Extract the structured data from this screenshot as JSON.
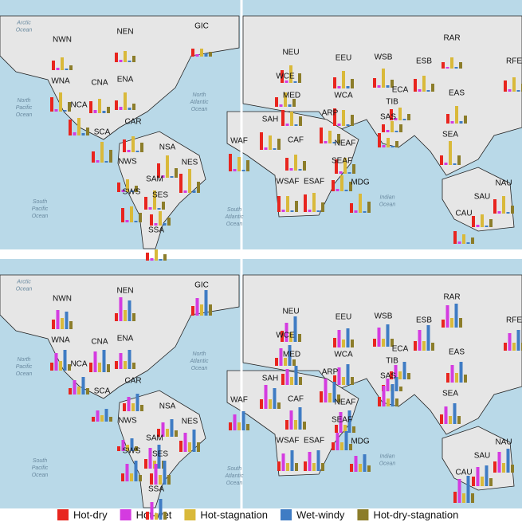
{
  "legend": {
    "items": [
      {
        "name": "Hot-dry",
        "color": "#e8251e"
      },
      {
        "name": "Hot-wet",
        "color": "#d43be0"
      },
      {
        "name": "Hot-stagnation",
        "color": "#d9b93a"
      },
      {
        "name": "Wet-windy",
        "color": "#3f7cc4"
      },
      {
        "name": "Hot-dry-stagnation",
        "color": "#8c7d2a"
      }
    ]
  },
  "oceans": [
    [
      "Arctic",
      "Ocean"
    ],
    [
      "North",
      "Pacific",
      "Ocean"
    ],
    [
      "North",
      "Atlantic",
      "Ocean"
    ],
    [
      "South",
      "Pacific",
      "Ocean"
    ],
    [
      "South",
      "Atlantic",
      "Ocean"
    ],
    [
      "Indian",
      "Ocean"
    ]
  ],
  "regions": [
    "NWN",
    "NEN",
    "GIC",
    "WNA",
    "CNA",
    "ENA",
    "NCA",
    "SCA",
    "CAR",
    "NWS",
    "NSA",
    "SAM",
    "NES",
    "SWS",
    "SES",
    "SSA",
    "NEU",
    "WCE",
    "MED",
    "WCA",
    "EEU",
    "WSB",
    "ESB",
    "RAR",
    "RFE",
    "ECA",
    "TIB",
    "EAS",
    "SAS",
    "ARP",
    "SAH",
    "WAF",
    "CAF",
    "NEAF",
    "SEAF",
    "WSAF",
    "ESAF",
    "MDG",
    "SEA",
    "NAU",
    "SAU",
    "CAU"
  ],
  "panels": [
    {
      "values": [
        [
          12,
          3,
          16,
          2,
          6
        ],
        [
          12,
          3,
          14,
          2,
          8
        ],
        [
          10,
          3,
          10,
          4,
          6
        ],
        [
          18,
          3,
          24,
          2,
          12
        ],
        [
          15,
          4,
          18,
          3,
          8
        ],
        [
          12,
          4,
          22,
          3,
          8
        ],
        [
          20,
          4,
          22,
          3,
          10
        ],
        [
          14,
          3,
          26,
          2,
          16
        ],
        [
          16,
          3,
          20,
          2,
          12
        ],
        [
          12,
          3,
          16,
          2,
          8
        ],
        [
          18,
          3,
          28,
          2,
          12
        ],
        [
          16,
          3,
          24,
          2,
          10
        ],
        [
          24,
          3,
          30,
          3,
          14
        ],
        [
          18,
          3,
          20,
          2,
          12
        ],
        [
          14,
          3,
          18,
          3,
          10
        ],
        [
          10,
          3,
          14,
          2,
          8
        ],
        [
          16,
          3,
          22,
          2,
          12
        ],
        [
          12,
          3,
          18,
          3,
          10
        ],
        [
          20,
          3,
          18,
          2,
          12
        ],
        [
          22,
          3,
          20,
          2,
          14
        ],
        [
          14,
          3,
          22,
          3,
          12
        ],
        [
          12,
          3,
          24,
          3,
          10
        ],
        [
          16,
          3,
          20,
          2,
          10
        ],
        [
          8,
          2,
          14,
          2,
          8
        ],
        [
          14,
          3,
          18,
          2,
          10
        ],
        [
          14,
          3,
          16,
          2,
          8
        ],
        [
          10,
          3,
          14,
          2,
          10
        ],
        [
          12,
          3,
          22,
          3,
          10
        ],
        [
          18,
          3,
          12,
          2,
          8
        ],
        [
          20,
          3,
          16,
          2,
          12
        ],
        [
          22,
          3,
          18,
          2,
          14
        ],
        [
          22,
          3,
          18,
          2,
          14
        ],
        [
          16,
          3,
          20,
          2,
          12
        ],
        [
          18,
          3,
          20,
          2,
          12
        ],
        [
          14,
          3,
          20,
          2,
          12
        ],
        [
          20,
          3,
          20,
          2,
          14
        ],
        [
          22,
          3,
          24,
          2,
          12
        ],
        [
          12,
          3,
          24,
          2,
          14
        ],
        [
          12,
          3,
          30,
          2,
          12
        ],
        [
          18,
          3,
          22,
          2,
          10
        ],
        [
          14,
          3,
          16,
          2,
          10
        ],
        [
          16,
          3,
          12,
          2,
          8
        ]
      ]
    },
    {
      "values": [
        [
          12,
          24,
          14,
          22,
          10
        ],
        [
          10,
          30,
          14,
          26,
          10
        ],
        [
          12,
          22,
          14,
          32,
          14
        ],
        [
          10,
          22,
          12,
          26,
          8
        ],
        [
          12,
          26,
          12,
          28,
          10
        ],
        [
          10,
          20,
          10,
          24,
          8
        ],
        [
          8,
          18,
          10,
          22,
          8
        ],
        [
          6,
          14,
          8,
          16,
          6
        ],
        [
          10,
          18,
          10,
          22,
          8
        ],
        [
          6,
          14,
          8,
          16,
          6
        ],
        [
          10,
          18,
          10,
          22,
          8
        ],
        [
          12,
          26,
          10,
          30,
          10
        ],
        [
          14,
          24,
          12,
          28,
          12
        ],
        [
          10,
          22,
          10,
          26,
          8
        ],
        [
          14,
          26,
          12,
          30,
          12
        ],
        [
          10,
          22,
          8,
          26,
          10
        ],
        [
          14,
          24,
          12,
          32,
          10
        ],
        [
          10,
          22,
          10,
          26,
          8
        ],
        [
          14,
          20,
          10,
          24,
          10
        ],
        [
          12,
          22,
          10,
          26,
          10
        ],
        [
          12,
          22,
          10,
          24,
          10
        ],
        [
          10,
          24,
          10,
          28,
          10
        ],
        [
          12,
          26,
          12,
          32,
          10
        ],
        [
          10,
          28,
          12,
          30,
          12
        ],
        [
          10,
          22,
          10,
          26,
          10
        ],
        [
          10,
          18,
          10,
          22,
          8
        ],
        [
          8,
          16,
          8,
          18,
          6
        ],
        [
          12,
          22,
          12,
          26,
          10
        ],
        [
          12,
          26,
          10,
          28,
          10
        ],
        [
          14,
          30,
          12,
          26,
          10
        ],
        [
          12,
          30,
          12,
          26,
          8
        ],
        [
          10,
          20,
          10,
          24,
          8
        ],
        [
          12,
          24,
          12,
          28,
          10
        ],
        [
          10,
          26,
          10,
          28,
          8
        ],
        [
          10,
          22,
          10,
          24,
          8
        ],
        [
          12,
          22,
          10,
          26,
          10
        ],
        [
          12,
          24,
          10,
          26,
          10
        ],
        [
          10,
          20,
          10,
          22,
          8
        ],
        [
          12,
          22,
          10,
          26,
          10
        ],
        [
          14,
          26,
          12,
          30,
          10
        ],
        [
          12,
          24,
          12,
          26,
          10
        ],
        [
          14,
          30,
          12,
          34,
          12
        ]
      ]
    }
  ]
}
